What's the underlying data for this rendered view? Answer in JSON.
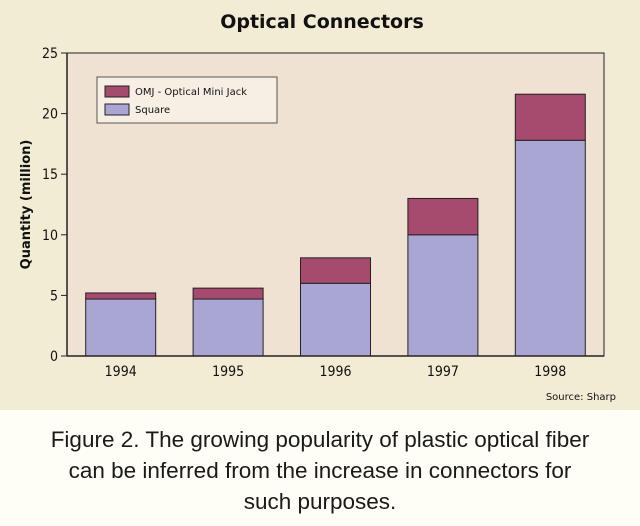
{
  "chart_data": {
    "type": "bar",
    "stacked": true,
    "title": "Optical Connectors",
    "ylabel": "Quantity (million)",
    "xlabel": "",
    "categories": [
      "1994",
      "1995",
      "1996",
      "1997",
      "1998"
    ],
    "ylim": [
      0,
      25
    ],
    "yticks": [
      "0",
      "5",
      "10",
      "15",
      "20",
      "25"
    ],
    "grid": false,
    "legend_position": "top-left",
    "series": [
      {
        "name": "Square",
        "values": [
          4.7,
          4.7,
          6.0,
          10.0,
          17.8
        ],
        "color": "#aaa6d4"
      },
      {
        "name": "OMJ - Optical Mini Jack",
        "values": [
          0.5,
          0.9,
          2.1,
          3.0,
          3.8
        ],
        "color": "#a64a6e"
      }
    ],
    "legend_order": [
      "OMJ - Optical Mini Jack",
      "Square"
    ],
    "source": "Source: Sharp",
    "plot_background": "#efe2d2"
  },
  "caption": {
    "lines": [
      "Figure 2. The growing popularity of plastic optical fiber",
      "can be inferred from the increase in connectors for",
      "such purposes."
    ]
  }
}
